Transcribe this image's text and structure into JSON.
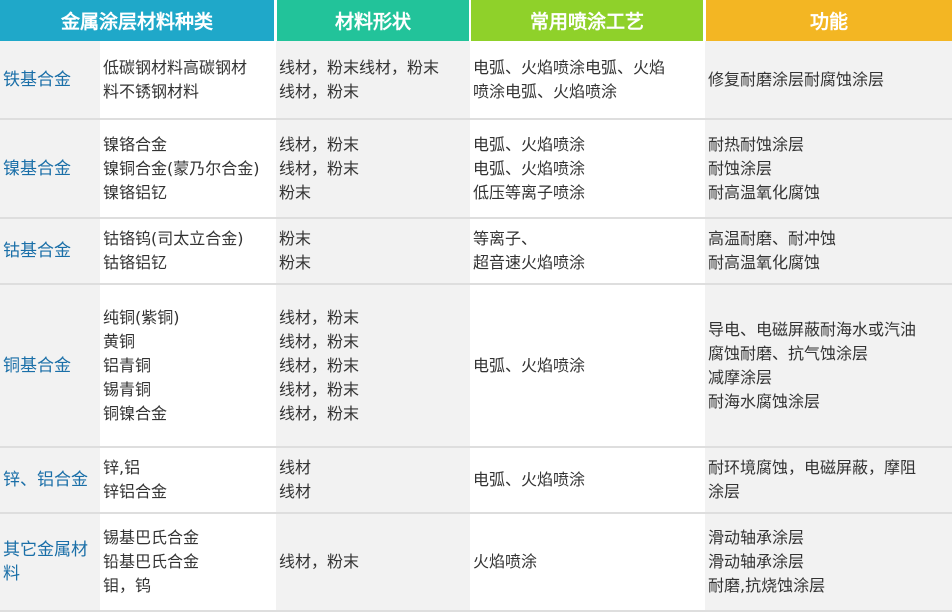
{
  "headers": [
    "金属涂层材料种类",
    "材料形状",
    "常用喷涂工艺",
    "功能"
  ],
  "header_colors": [
    "#1fa8c9",
    "#22c39a",
    "#8fd12a",
    "#f3b623"
  ],
  "rows": [
    {
      "type": "铁基合金",
      "materials": "低碳钢材料高碳钢材\n料不锈钢材料",
      "shape": "线材，粉末线材，粉末\n线材，粉末",
      "process": "电弧、火焰喷涂电弧、火焰\n喷涂电弧、火焰喷涂",
      "function": "修复耐磨涂层耐腐蚀涂层"
    },
    {
      "type": "镍基合金",
      "materials": "镍铬合金\n镍铜合金(蒙乃尔合金)\n镍铬铝钇",
      "shape": "线材，粉末\n线材，粉末\n粉末",
      "process": "电弧、火焰喷涂\n电弧、火焰喷涂\n低压等离子喷涂",
      "function": "耐热耐蚀涂层\n耐蚀涂层\n耐高温氧化腐蚀"
    },
    {
      "type": "钴基合金",
      "materials": "钴铬钨(司太立合金)\n钴铬铝钇",
      "shape": "粉末\n粉末",
      "process": "等离子、\n超音速火焰喷涂",
      "function": "高温耐磨、耐冲蚀\n耐高温氧化腐蚀"
    },
    {
      "type": "铜基合金",
      "materials": "纯铜(紫铜)\n黄铜\n铝青铜\n锡青铜\n铜镍合金",
      "shape": "线材，粉末\n线材，粉末\n线材，粉末\n线材，粉末\n线材，粉末",
      "process": "电弧、火焰喷涂",
      "function": "导电、电磁屏蔽耐海水或汽油\n腐蚀耐磨、抗气蚀涂层\n减摩涂层\n耐海水腐蚀涂层"
    },
    {
      "type": "锌、铝合金",
      "materials": "锌,铝\n锌铝合金",
      "shape": "线材\n线材",
      "process": "电弧、火焰喷涂",
      "function": "耐环境腐蚀，电磁屏蔽，摩阻\n涂层"
    },
    {
      "type": "其它金属材\n料",
      "materials": "锡基巴氏合金\n铅基巴氏合金\n钼，钨",
      "shape": "线材，粉末",
      "process": "火焰喷涂",
      "function": "滑动轴承涂层\n滑动轴承涂层\n耐磨,抗烧蚀涂层"
    }
  ]
}
